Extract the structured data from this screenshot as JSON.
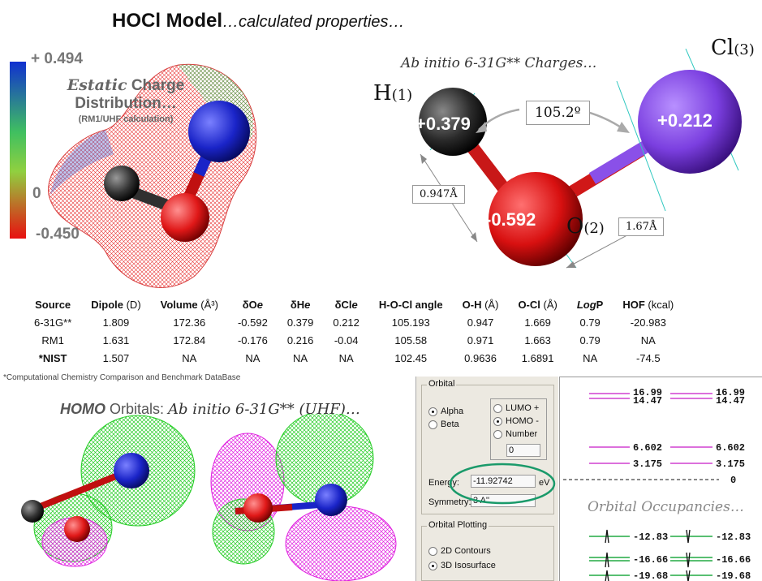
{
  "title": {
    "bold": "HOCl Model",
    "italic": "…calculated properties…"
  },
  "esp": {
    "scale_max": "+ 0.494",
    "scale_mid": "0",
    "scale_min": "-0.450",
    "caption_italic": "Estatic",
    "caption_rest": " Charge",
    "caption_line2": "Distribution…",
    "caption_line3": "(RM1/UHF calculation)"
  },
  "charges": {
    "title": "Ab initio 6-31G** Charges…",
    "h_label": "H",
    "h_sub": "(1)",
    "o_label": "O",
    "o_sub": "(2)",
    "cl_label": "Cl",
    "cl_sub": "(3)",
    "h_charge": "+0.379",
    "o_charge": "-0.592",
    "cl_charge": "+0.212",
    "angle": "105.2º",
    "oh_length": "0.947Å",
    "ocl_length": "1.67Å"
  },
  "table": {
    "headers": [
      "Source",
      "Dipole",
      "Volume",
      "δO",
      "δH",
      "δCl",
      "H-O-Cl angle",
      "O-H",
      "O-Cl",
      "Log",
      "HOF"
    ],
    "header_units": [
      "",
      " (D)",
      " (Å³)",
      "",
      "",
      "",
      "",
      " (Å)",
      " (Å)",
      "P",
      " (kcal)"
    ],
    "rows": [
      [
        "6-31G**",
        "1.809",
        "172.36",
        "-0.592",
        "0.379",
        "0.212",
        "105.193",
        "0.947",
        "1.669",
        "0.79",
        "-20.983"
      ],
      [
        "RM1",
        "1.631",
        "172.84",
        "-0.176",
        "0.216",
        "-0.04",
        "105.58",
        "0.971",
        "1.663",
        "0.79",
        "NA"
      ],
      [
        "*NIST",
        "1.507",
        "NA",
        "NA",
        "NA",
        "NA",
        "102.45",
        "0.9636",
        "1.6891",
        "NA",
        "-74.5"
      ]
    ],
    "footnote": "*Computational Chemistry Comparison and Benchmark DataBase"
  },
  "homo": {
    "bold": "HOMO",
    "rest": " Orbitals: ",
    "serif": "Ab initio 6-31G** (UHF)…"
  },
  "orbital_panel": {
    "group_title": "Orbital",
    "alpha": "Alpha",
    "beta": "Beta",
    "lumo": "LUMO +",
    "homo": "HOMO -",
    "number": "Number",
    "number_value": "0",
    "energy_label": "Energy:",
    "energy_value": "-11.92742",
    "energy_unit": "eV",
    "symmetry_label": "Symmetry:",
    "symmetry_value": "3 A''",
    "plotting_title": "Orbital Plotting",
    "contours": "2D Contours",
    "isosurface": "3D Isosurface",
    "selected_spin": "Alpha",
    "selected_orbital": "HOMO -",
    "selected_plot": "3D Isosurface"
  },
  "diagram": {
    "occ_title": "Orbital Occupancies…",
    "levels_left": [
      "16.99",
      "14.47",
      "6.602",
      "3.175",
      "-12.83",
      "-16.66",
      "-19.68"
    ],
    "levels_right": [
      "16.99",
      "14.47",
      "6.602",
      "3.175",
      "0",
      "-12.83",
      "-16.66",
      "-19.68"
    ]
  },
  "colors": {
    "hydrogen": "#2a2a2a",
    "oxygen": "#e02020",
    "chlorine": "#7b3fe0",
    "nitrogen_blue": "#1a24c8",
    "lobe_green": "#22dd22",
    "lobe_magenta": "#ee22ee",
    "circle_green": "#1a9a6a"
  }
}
